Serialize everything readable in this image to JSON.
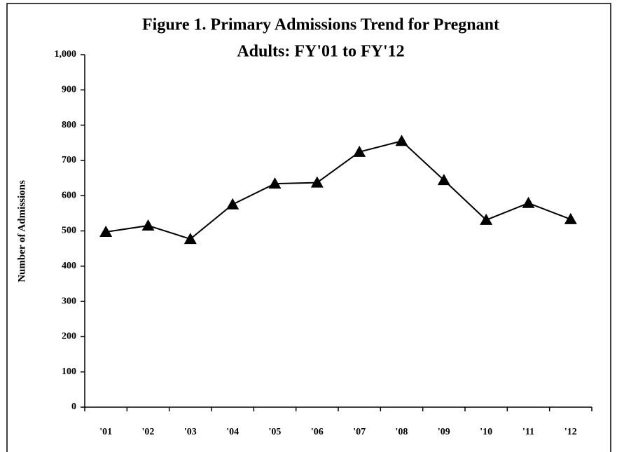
{
  "chart_data": {
    "type": "line",
    "title": [
      "Figure 1. Primary Admissions Trend for Pregnant",
      "Adults: FY'01 to FY'12"
    ],
    "y_label": "Number of Admissions",
    "categories": [
      "'01",
      "'02",
      "'03",
      "'04",
      "'05",
      "'06",
      "'07",
      "'08",
      "'09",
      "'10",
      "'11",
      "'12"
    ],
    "series": [
      {
        "name": "Primary Admissions",
        "color": "#000000",
        "values": [
          497,
          515,
          477,
          575,
          634,
          637,
          724,
          755,
          644,
          531,
          579,
          533
        ]
      }
    ],
    "ylim": [
      0,
      1000
    ],
    "yticks": [
      0,
      100,
      200,
      300,
      400,
      500,
      600,
      700,
      800,
      900,
      {
        "value": 1000,
        "label": "1,000"
      }
    ],
    "grid": false,
    "marker": "triangle"
  }
}
